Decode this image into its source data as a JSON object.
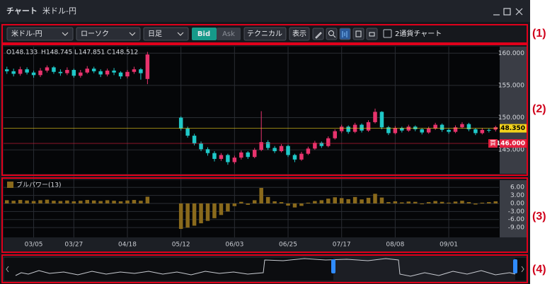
{
  "window": {
    "title": "チャート",
    "subtitle": "米ドル-円"
  },
  "toolbar": {
    "symbol": "米ドル-円",
    "chart_style": "ローソク",
    "timeframe": "日足",
    "bid": "Bid",
    "ask": "Ask",
    "technical": "テクニカル",
    "display": "表示",
    "dual_chart": "2通貨チャート"
  },
  "annotations": [
    "(1)",
    "(2)",
    "(3)",
    "(4)"
  ],
  "ohlc_labels": [
    "O",
    "H",
    "L",
    "C"
  ],
  "price_lines": [
    {
      "value": 148.35,
      "label": "148.350",
      "color": "#f2d31b"
    },
    {
      "value": 146,
      "label": "146.000",
      "color": "#e3203f",
      "tag": "買"
    }
  ],
  "chart_data": [
    {
      "type": "candlestick",
      "up_color": "#e8336d",
      "down_color": "#1fc8c8",
      "categories": [
        null,
        null,
        null,
        null,
        "03/05",
        null,
        null,
        null,
        null,
        null,
        "03/27",
        null,
        null,
        null,
        null,
        null,
        null,
        null,
        "04/18",
        null,
        null,
        null,
        null,
        null,
        null,
        null,
        "05/12",
        null,
        null,
        null,
        null,
        null,
        null,
        null,
        "06/03",
        null,
        null,
        null,
        null,
        null,
        null,
        null,
        "06/25",
        null,
        null,
        null,
        null,
        null,
        null,
        null,
        "07/17",
        null,
        null,
        null,
        null,
        null,
        null,
        null,
        "08/08",
        null,
        null,
        null,
        null,
        null,
        null,
        null,
        "09/01",
        null,
        null,
        null,
        null,
        null,
        null,
        null
      ],
      "open": [
        157.5,
        157.2,
        156.8,
        157.5,
        157.0,
        156.6,
        157.3,
        157.8,
        157.1,
        156.9,
        157.4,
        156.5,
        157.0,
        157.6,
        157.2,
        156.7,
        157.3,
        157.0,
        156.4,
        157.1,
        157.5,
        156.0,
        null,
        null,
        null,
        null,
        150.0,
        148.3,
        147.2,
        146.0,
        145.1,
        144.5,
        143.6,
        144.2,
        143.1,
        143.8,
        144.6,
        143.9,
        145.0,
        146.2,
        145.3,
        144.8,
        145.6,
        144.2,
        143.5,
        144.4,
        145.2,
        146.1,
        145.6,
        146.8,
        147.9,
        148.6,
        147.8,
        148.9,
        148.0,
        149.3,
        150.9,
        148.5,
        147.6,
        148.4,
        148.0,
        148.6,
        148.2,
        147.7,
        148.3,
        148.9,
        148.1,
        147.8,
        148.5,
        149.0,
        148.2,
        147.6,
        148.1,
        148.133
      ],
      "high": [
        157.9,
        157.6,
        157.9,
        157.8,
        157.3,
        157.7,
        158.1,
        158.0,
        157.5,
        157.8,
        157.6,
        157.4,
        158.0,
        157.9,
        157.5,
        157.6,
        157.7,
        157.2,
        157.4,
        157.9,
        157.7,
        160.2,
        null,
        null,
        null,
        null,
        150.2,
        148.6,
        147.5,
        146.3,
        145.4,
        144.8,
        144.5,
        144.4,
        144.1,
        144.9,
        144.8,
        145.3,
        151.0,
        146.5,
        145.6,
        145.9,
        145.8,
        144.4,
        144.7,
        145.5,
        146.4,
        146.3,
        147.1,
        148.2,
        148.9,
        148.8,
        149.2,
        149.1,
        149.6,
        151.4,
        151.0,
        148.7,
        148.7,
        148.6,
        148.9,
        148.8,
        148.4,
        148.6,
        149.2,
        149.1,
        148.3,
        148.8,
        149.3,
        149.2,
        148.4,
        148.4,
        148.3,
        148.745
      ],
      "low": [
        156.8,
        156.4,
        156.5,
        156.7,
        156.2,
        156.3,
        157.0,
        156.8,
        156.5,
        156.6,
        156.2,
        156.2,
        156.8,
        156.9,
        156.3,
        156.4,
        156.6,
        156.0,
        156.1,
        156.8,
        155.9,
        155.2,
        null,
        null,
        null,
        null,
        148.0,
        146.9,
        145.7,
        144.8,
        144.1,
        143.2,
        143.3,
        142.7,
        142.8,
        143.5,
        143.6,
        143.7,
        144.8,
        145.0,
        144.5,
        144.6,
        143.9,
        143.1,
        143.3,
        144.2,
        145.0,
        145.3,
        145.4,
        146.6,
        147.6,
        147.5,
        147.6,
        147.7,
        147.8,
        149.1,
        148.2,
        147.3,
        147.4,
        147.7,
        147.8,
        147.9,
        147.4,
        147.5,
        148.1,
        147.8,
        147.5,
        147.6,
        148.3,
        147.9,
        147.3,
        147.4,
        147.7,
        147.851
      ],
      "close": [
        157.2,
        156.8,
        157.5,
        157.0,
        156.6,
        157.3,
        157.8,
        157.1,
        156.9,
        157.4,
        156.5,
        157.0,
        157.6,
        157.2,
        156.7,
        157.3,
        157.0,
        156.4,
        157.1,
        157.5,
        156.9,
        159.8,
        null,
        null,
        null,
        null,
        148.3,
        147.2,
        146.0,
        145.1,
        144.5,
        143.6,
        144.2,
        143.1,
        143.8,
        144.6,
        143.9,
        145.0,
        146.2,
        145.3,
        144.8,
        145.6,
        144.2,
        143.5,
        144.4,
        145.2,
        146.1,
        145.6,
        146.8,
        147.9,
        148.6,
        147.8,
        148.9,
        148.0,
        149.3,
        150.9,
        148.5,
        147.6,
        148.4,
        148.0,
        148.6,
        148.2,
        147.7,
        148.3,
        148.9,
        148.1,
        147.8,
        148.5,
        149.0,
        148.2,
        147.6,
        148.1,
        148.0,
        148.512
      ],
      "ylim": [
        141.4,
        160.8
      ],
      "yticks": [
        {
          "value": 145,
          "label": "145.000"
        },
        {
          "value": 150,
          "label": "150.000"
        },
        {
          "value": 155,
          "label": "155.000"
        },
        {
          "value": 160,
          "label": "160.000"
        }
      ],
      "grid": true
    },
    {
      "type": "bar",
      "legend": "ブルパワー(13)",
      "color": "#8a6a1c",
      "values": [
        1.2,
        1.0,
        1.3,
        1.1,
        0.9,
        1.2,
        1.4,
        1.0,
        0.9,
        1.1,
        0.8,
        1.0,
        1.3,
        1.1,
        0.9,
        1.2,
        1.0,
        0.8,
        1.1,
        1.3,
        1.0,
        2.5,
        null,
        null,
        null,
        null,
        -9.5,
        -9.0,
        -8.3,
        -7.4,
        -6.5,
        -5.5,
        -4.3,
        -3.0,
        -1.0,
        0.6,
        -0.5,
        1.2,
        5.8,
        2.4,
        0.8,
        0.5,
        -0.8,
        -1.5,
        -0.9,
        0.3,
        0.9,
        1.2,
        1.8,
        2.3,
        2.0,
        1.6,
        2.4,
        1.5,
        2.1,
        3.6,
        2.2,
        0.5,
        0.8,
        0.4,
        0.7,
        0.6,
        -0.3,
        0.5,
        0.9,
        0.6,
        0.3,
        0.7,
        1.0,
        0.5,
        -0.4,
        0.3,
        0.5,
        0.8
      ],
      "ylim": [
        -11.6,
        7.9
      ],
      "yticks": [
        {
          "value": -9,
          "label": "-9.00"
        },
        {
          "value": -6,
          "label": "-6.00"
        },
        {
          "value": -3,
          "label": "-3.00"
        },
        {
          "value": 0,
          "label": "0.00"
        },
        {
          "value": 3,
          "label": "3.00"
        },
        {
          "value": 6,
          "label": "6.00"
        }
      ],
      "grid": true
    }
  ]
}
